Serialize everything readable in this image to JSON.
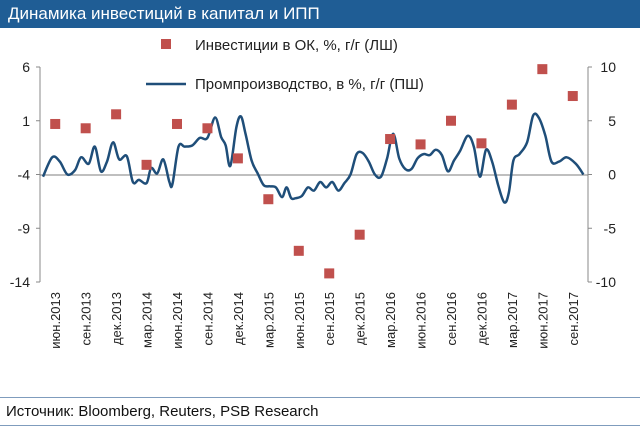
{
  "header": {
    "title": "Динамика инвестиций в капитал и ИПП"
  },
  "footer": {
    "source": "Источник: Bloomberg, Reuters, PSB Research"
  },
  "chart_data": {
    "type": "line",
    "title": "Динамика инвестиций в капитал и ИПП",
    "x_labels": [
      "июн.2013",
      "сен.2013",
      "дек.2013",
      "мар.2014",
      "июн.2014",
      "сен.2014",
      "дек.2014",
      "мар.2015",
      "июн.2015",
      "сен.2015",
      "дек.2015",
      "мар.2016",
      "июн.2016",
      "сен.2016",
      "дек.2016",
      "мар.2017",
      "июн.2017",
      "сен.2017"
    ],
    "left_axis": {
      "min": -14,
      "max": 6,
      "ticks": [
        6,
        1,
        -4,
        -9,
        -14
      ]
    },
    "right_axis": {
      "min": -10,
      "max": 10,
      "ticks": [
        10,
        5,
        0,
        -5,
        -10
      ]
    },
    "series": [
      {
        "name": "Инвестиции в ОК, %, г/г (ЛШ)",
        "kind": "scatter",
        "axis": "left",
        "color": "#c0504d",
        "points": [
          {
            "i": 0,
            "v": 0.7
          },
          {
            "i": 1,
            "v": 0.3
          },
          {
            "i": 2,
            "v": 1.6
          },
          {
            "i": 3,
            "v": -3.1
          },
          {
            "i": 4,
            "v": 0.7
          },
          {
            "i": 5,
            "v": 0.3
          },
          {
            "i": 6,
            "v": -2.5
          },
          {
            "i": 7,
            "v": -6.3
          },
          {
            "i": 8,
            "v": -11.1
          },
          {
            "i": 9,
            "v": -13.2
          },
          {
            "i": 10,
            "v": -9.6
          },
          {
            "i": 11,
            "v": -0.7
          },
          {
            "i": 12,
            "v": -1.2
          },
          {
            "i": 13,
            "v": 1.0
          },
          {
            "i": 14,
            "v": -1.1
          },
          {
            "i": 15,
            "v": 2.5
          },
          {
            "i": 16,
            "v": 5.8
          },
          {
            "i": 17,
            "v": 3.3
          }
        ]
      },
      {
        "name": "Промпроизводство, в %, г/г (ПШ)",
        "kind": "line",
        "axis": "right",
        "color": "#1f4e79",
        "points": [
          [
            -0.4,
            -0.2
          ],
          [
            -0.1,
            1.6
          ],
          [
            0.15,
            1.2
          ],
          [
            0.4,
            0.0
          ],
          [
            0.65,
            0.4
          ],
          [
            0.85,
            1.6
          ],
          [
            1.1,
            1.0
          ],
          [
            1.3,
            2.6
          ],
          [
            1.5,
            0.3
          ],
          [
            1.7,
            1.2
          ],
          [
            1.9,
            3.0
          ],
          [
            2.1,
            1.4
          ],
          [
            2.35,
            1.7
          ],
          [
            2.55,
            -0.7
          ],
          [
            2.75,
            -0.5
          ],
          [
            3.0,
            -0.8
          ],
          [
            3.15,
            0.6
          ],
          [
            3.35,
            0.1
          ],
          [
            3.55,
            1.4
          ],
          [
            3.75,
            -0.7
          ],
          [
            3.85,
            -0.9
          ],
          [
            4.05,
            2.6
          ],
          [
            4.25,
            2.6
          ],
          [
            4.5,
            2.7
          ],
          [
            4.75,
            3.4
          ],
          [
            5.0,
            3.4
          ],
          [
            5.25,
            5.3
          ],
          [
            5.45,
            3.5
          ],
          [
            5.6,
            2.7
          ],
          [
            5.75,
            0.8
          ],
          [
            5.95,
            4.4
          ],
          [
            6.1,
            5.4
          ],
          [
            6.25,
            3.8
          ],
          [
            6.45,
            1.3
          ],
          [
            6.65,
            0.1
          ],
          [
            6.85,
            -1.0
          ],
          [
            7.05,
            -1.1
          ],
          [
            7.25,
            -1.2
          ],
          [
            7.45,
            -2.1
          ],
          [
            7.6,
            -1.2
          ],
          [
            7.75,
            -2.2
          ],
          [
            7.9,
            -2.2
          ],
          [
            8.1,
            -2.0
          ],
          [
            8.3,
            -1.2
          ],
          [
            8.5,
            -1.5
          ],
          [
            8.7,
            -0.7
          ],
          [
            8.9,
            -1.2
          ],
          [
            9.1,
            -0.7
          ],
          [
            9.3,
            -1.5
          ],
          [
            9.5,
            -0.8
          ],
          [
            9.7,
            0.0
          ],
          [
            9.9,
            1.9
          ],
          [
            10.1,
            2.0
          ],
          [
            10.3,
            1.2
          ],
          [
            10.5,
            0.0
          ],
          [
            10.7,
            -0.2
          ],
          [
            10.9,
            1.5
          ],
          [
            11.1,
            3.8
          ],
          [
            11.3,
            1.5
          ],
          [
            11.5,
            0.5
          ],
          [
            11.7,
            0.5
          ],
          [
            11.9,
            1.5
          ],
          [
            12.1,
            1.9
          ],
          [
            12.3,
            1.8
          ],
          [
            12.5,
            2.3
          ],
          [
            12.7,
            1.8
          ],
          [
            12.9,
            0.3
          ],
          [
            13.1,
            1.3
          ],
          [
            13.3,
            2.2
          ],
          [
            13.55,
            3.6
          ],
          [
            13.75,
            2.6
          ],
          [
            13.95,
            -0.2
          ],
          [
            14.15,
            2.3
          ],
          [
            14.35,
            1.2
          ],
          [
            14.55,
            -1.0
          ],
          [
            14.75,
            -2.6
          ],
          [
            14.9,
            -1.7
          ],
          [
            15.05,
            1.3
          ],
          [
            15.25,
            1.9
          ],
          [
            15.5,
            3.0
          ],
          [
            15.7,
            5.5
          ],
          [
            15.9,
            5.2
          ],
          [
            16.1,
            3.6
          ],
          [
            16.3,
            1.2
          ],
          [
            16.55,
            1.2
          ],
          [
            16.8,
            1.6
          ],
          [
            17.1,
            1.0
          ],
          [
            17.35,
            0.0
          ]
        ]
      }
    ]
  }
}
